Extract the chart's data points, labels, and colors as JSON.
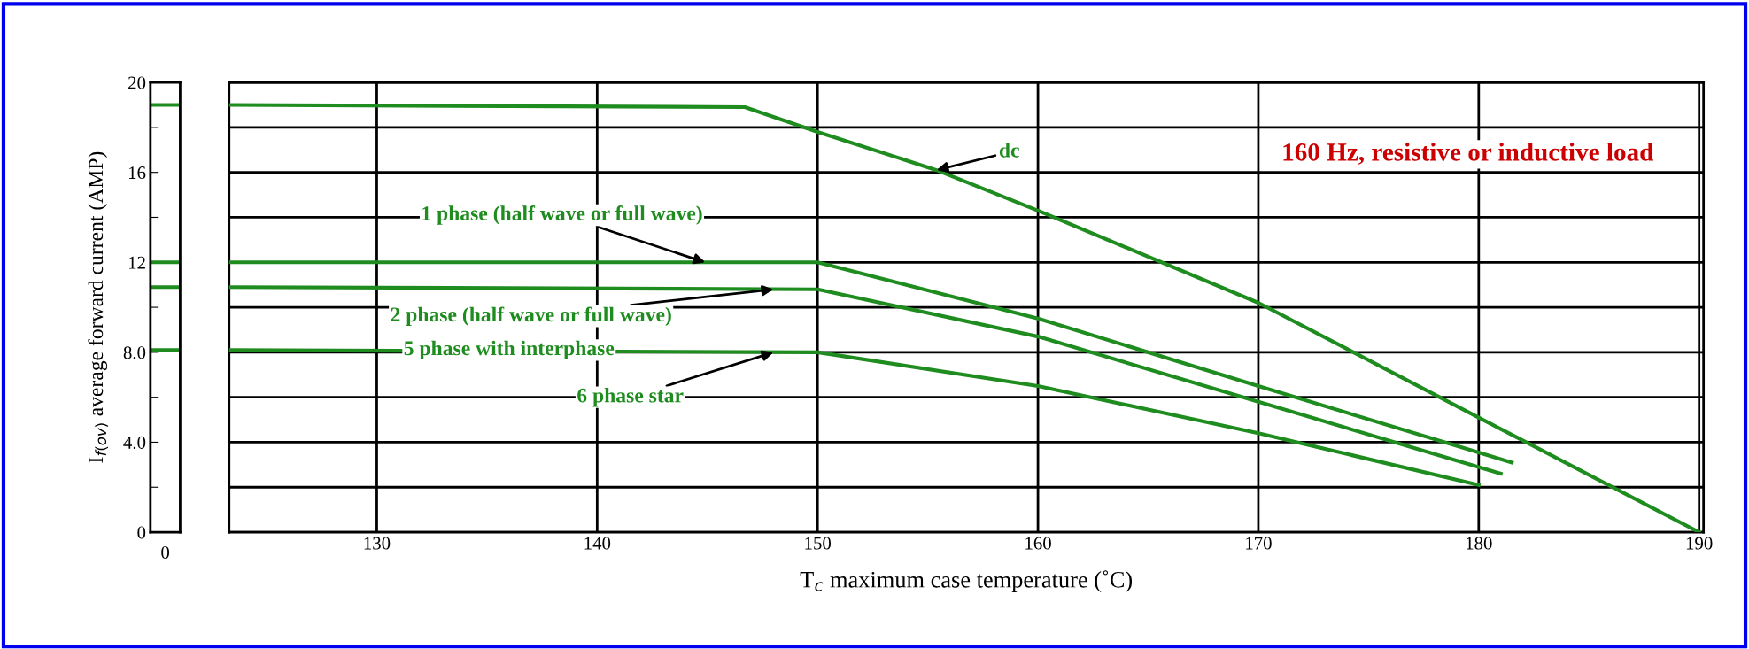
{
  "chart_data": {
    "type": "line",
    "xlabel": "T$_{c}$ maximum case temperature (˚C)",
    "ylabel": "I$_{f(ov)}$ average forward current (AMP)",
    "xlim": [
      123.3,
      190.2
    ],
    "xticks": [
      130,
      140,
      150,
      160,
      170,
      180,
      190
    ],
    "ylim": [
      0,
      20
    ],
    "yticks": [
      0,
      {
        "value": 2,
        "label": null
      },
      {
        "value": 4,
        "label": "4.0"
      },
      {
        "value": 6,
        "label": null
      },
      {
        "value": 8,
        "label": "8.0"
      },
      {
        "value": 10,
        "label": null
      },
      12,
      {
        "value": 14,
        "label": null
      },
      16,
      {
        "value": 18,
        "label": null
      },
      20
    ],
    "grid": true,
    "line_style": "solid",
    "marker": "none",
    "series": [
      {
        "color": "#1e8c1e",
        "x": [
          123.3,
          146.7,
          150,
          155.4,
          160,
          170,
          180,
          190
        ],
        "values": [
          19,
          18.9,
          17.8,
          16.1,
          14.3,
          10.2,
          5.1,
          0
        ]
      },
      {
        "color": "#1e8c1e",
        "x": [
          123.3,
          150,
          160,
          170,
          181.5
        ],
        "values": [
          12,
          12,
          9.5,
          6.5,
          3.1
        ]
      },
      {
        "color": "#1e8c1e",
        "x": [
          123.3,
          150,
          160,
          170,
          181
        ],
        "values": [
          10.9,
          10.8,
          8.7,
          5.8,
          2.6
        ]
      },
      {
        "color": "#1e8c1e",
        "x": [
          123.3,
          150,
          160,
          170,
          180
        ],
        "values": [
          8.1,
          8.0,
          6.5,
          4.4,
          2.1
        ]
      }
    ],
    "annotations": [
      {
        "text": "dc",
        "x": 155.4,
        "y": 16.1
      },
      {
        "text": "1 phase (half wave or full wave)",
        "x": 144.9,
        "y": 12
      },
      {
        "text": "2 phase (half wave or full wave)",
        "x": 148,
        "y": 10.8
      },
      {
        "text": "5 phase with interphase",
        "x": 136,
        "y": 8.1
      },
      {
        "text": "6 phase star",
        "x": 148,
        "y": 8.0
      },
      "160 Hz, resistive or inductive load",
      "0"
    ]
  }
}
